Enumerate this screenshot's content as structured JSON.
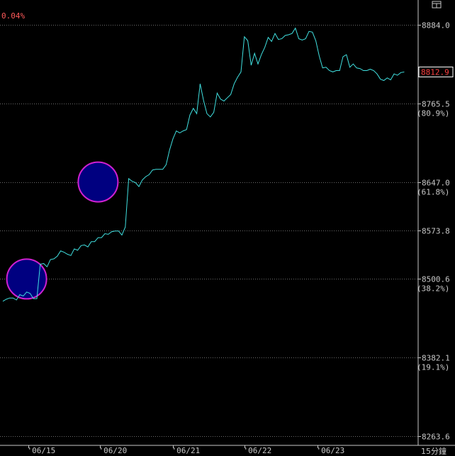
{
  "header": {
    "change_pct": "0.04%"
  },
  "panel_icon": "window-icon",
  "unit_label": "15分鐘",
  "colors": {
    "line": "#40e0e0",
    "grid": "#6a6a6a",
    "axis": "#c8c8c8",
    "highlight_fill": "#000080",
    "highlight_stroke": "#d020d0",
    "last_price": "#ff4040"
  },
  "chart_data": {
    "type": "line",
    "title": "",
    "xlabel": "",
    "ylabel": "",
    "ylim": [
      8263.6,
      8900
    ],
    "grid": true,
    "y_ticks": [
      {
        "value": 8884.0,
        "label": "8884.0",
        "pct": ""
      },
      {
        "value": 8765.5,
        "label": "8765.5",
        "pct": "(80.9%)"
      },
      {
        "value": 8647.0,
        "label": "8647.0",
        "pct": "(61.8%)"
      },
      {
        "value": 8573.8,
        "label": "8573.8",
        "pct": ""
      },
      {
        "value": 8500.6,
        "label": "8500.6",
        "pct": "(38.2%)"
      },
      {
        "value": 8382.1,
        "label": "8382.1",
        "pct": "(19.1%)"
      },
      {
        "value": 8263.6,
        "label": "8263.6",
        "pct": ""
      }
    ],
    "last_price": {
      "value": 8812.9,
      "label": "8812.9"
    },
    "x_ticks": [
      {
        "label": "'06/15",
        "bar": 7.5
      },
      {
        "label": "'06/20",
        "bar": 28.5
      },
      {
        "label": "'06/21",
        "bar": 50
      },
      {
        "label": "'06/22",
        "bar": 71
      },
      {
        "label": "'06/23",
        "bar": 92.5
      }
    ],
    "series": [
      {
        "values": [
          8467,
          8470,
          8472,
          8472,
          8469,
          8477,
          8475,
          8481,
          8479,
          8471,
          8471,
          8523,
          8524,
          8519,
          8530,
          8531,
          8535,
          8543,
          8541,
          8538,
          8536,
          8546,
          8544,
          8551,
          8552,
          8549,
          8557,
          8557,
          8563,
          8563,
          8569,
          8568,
          8572,
          8573,
          8573,
          8567,
          8579,
          8652,
          8648,
          8646,
          8640,
          8650,
          8655,
          8658,
          8665,
          8666,
          8666,
          8666,
          8673,
          8695,
          8712,
          8724,
          8721,
          8724,
          8726,
          8748,
          8758,
          8750,
          8795,
          8770,
          8750,
          8745,
          8752,
          8781,
          8772,
          8769,
          8774,
          8779,
          8795,
          8805,
          8813,
          8866,
          8860,
          8823,
          8841,
          8825,
          8839,
          8850,
          8865,
          8859,
          8871,
          8862,
          8863,
          8868,
          8869,
          8871,
          8879,
          8863,
          8861,
          8863,
          8874,
          8873,
          8860,
          8837,
          8819,
          8820,
          8815,
          8813,
          8815,
          8815,
          8836,
          8839,
          8820,
          8825,
          8819,
          8818,
          8815,
          8815,
          8817,
          8815,
          8810,
          8802,
          8800,
          8804,
          8801,
          8810,
          8808,
          8812,
          8812.9
        ]
      }
    ],
    "annotations": [
      {
        "type": "circle",
        "bar": 7,
        "value": 8500.6
      },
      {
        "type": "circle",
        "bar": 28,
        "value": 8647.0
      }
    ]
  }
}
